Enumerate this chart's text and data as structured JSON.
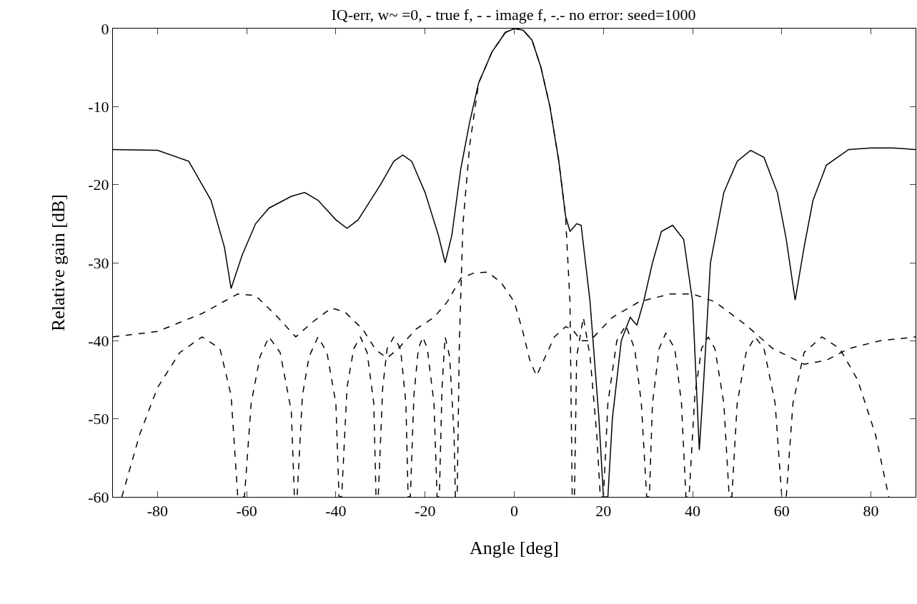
{
  "chart_data": {
    "type": "line",
    "title": "IQ-err, w~ =0, - true f, - - image f, -.- no error: seed=1000",
    "xlabel": "Angle [deg]",
    "ylabel": "Relative gain [dB]",
    "xlim": [
      -90,
      90
    ],
    "ylim": [
      -60,
      0
    ],
    "xticks": [
      -80,
      -60,
      -40,
      -20,
      0,
      20,
      40,
      60,
      80
    ],
    "yticks": [
      -60,
      -50,
      -40,
      -30,
      -20,
      -10,
      0
    ],
    "grid": false,
    "marker": "none",
    "series": [
      {
        "color": "#000000",
        "line_style": "solid",
        "x": [
          -90,
          -80,
          -73,
          -68,
          -65,
          -63.5,
          -61,
          -58,
          -55,
          -50,
          -47,
          -44,
          -40,
          -37.5,
          -35,
          -30,
          -27,
          -25,
          -23,
          -20,
          -17,
          -15.5,
          -14,
          -12,
          -10,
          -8,
          -5,
          -2,
          0,
          2,
          4,
          6,
          8,
          10,
          11.5,
          12.5,
          14,
          15,
          17,
          19,
          20,
          21,
          22,
          24,
          26,
          27.5,
          29,
          31,
          33,
          35.5,
          38,
          40,
          41.5,
          42.5,
          44,
          47,
          50,
          53,
          56,
          59,
          61,
          63,
          65,
          67,
          70,
          75,
          80,
          85,
          90
        ],
        "values": [
          -15.5,
          -15.6,
          -17,
          -22,
          -28,
          -33.3,
          -29,
          -25,
          -23,
          -21.5,
          -21,
          -22,
          -24.5,
          -25.6,
          -24.5,
          -20,
          -17,
          -16.2,
          -17,
          -21,
          -26.5,
          -30,
          -26.5,
          -18,
          -12,
          -7,
          -3,
          -0.5,
          0,
          -0.2,
          -1.5,
          -5,
          -10,
          -17,
          -24,
          -26,
          -25,
          -25.2,
          -35,
          -50,
          -60,
          -60,
          -50,
          -40,
          -37,
          -38,
          -35,
          -30,
          -26,
          -25.2,
          -27,
          -35,
          -54,
          -45,
          -30,
          -21,
          -17,
          -15.6,
          -16.5,
          -21,
          -27,
          -34.8,
          -28,
          -22,
          -17.5,
          -15.5,
          -15.3,
          -15.3,
          -15.5
        ]
      },
      {
        "color": "#000000",
        "line_style": "dashed",
        "x": [
          -90,
          -80,
          -70,
          -62,
          -58,
          -53,
          -49,
          -45,
          -41,
          -38,
          -34,
          -31,
          -28.5,
          -26,
          -22,
          -18,
          -15,
          -12,
          -9,
          -6,
          -3,
          0,
          2,
          3.5,
          5,
          7,
          9,
          11.5,
          13,
          15,
          17,
          22,
          28,
          35,
          40,
          45,
          52,
          58,
          65,
          70,
          75,
          82,
          90
        ],
        "values": [
          -39.5,
          -38.8,
          -36.5,
          -34,
          -34.2,
          -37,
          -39.5,
          -37.5,
          -35.8,
          -36.3,
          -38.5,
          -41.2,
          -42.2,
          -41,
          -38.5,
          -37,
          -35,
          -32,
          -31.3,
          -31.2,
          -32.5,
          -35,
          -39,
          -42.5,
          -44.5,
          -42,
          -39.5,
          -38.2,
          -38.5,
          -40,
          -40,
          -37,
          -35,
          -34,
          -34,
          -35,
          -38,
          -41,
          -43,
          -42.5,
          -41,
          -40,
          -39.5
        ]
      },
      {
        "color": "#000000",
        "line_style": "dashed",
        "x": [
          -88,
          -84,
          -80,
          -75,
          -70,
          -66,
          -63.5,
          -62,
          -60.5,
          -59,
          -57,
          -55,
          -52.5,
          -50,
          -49.3,
          -48.7,
          -47.5,
          -46,
          -44,
          -42,
          -40,
          -39.3,
          -38.7,
          -37.5,
          -36,
          -34.5,
          -33,
          -31.5,
          -31,
          -30.5,
          -29.5,
          -28.5,
          -27,
          -25.5,
          -24.3,
          -23.8,
          -23.3,
          -22.5,
          -21.5,
          -20.5,
          -19.5,
          -18,
          -17.3,
          -16.8,
          -16.2,
          -15.5,
          -14.5,
          -13.5,
          -13.2,
          -12.8,
          -12.3,
          -11.5,
          -10,
          -8,
          -5,
          -2,
          0,
          2,
          4,
          6,
          8,
          10,
          11.5,
          12.5,
          13,
          13.5,
          14,
          15.5,
          17,
          18.5,
          19.3,
          20,
          21,
          23,
          25,
          27,
          28.5,
          29.7,
          30.3,
          31,
          32.5,
          34,
          36,
          37.5,
          38.5,
          39.2,
          40.5,
          42,
          43.5,
          45,
          47,
          48.2,
          48.8,
          50,
          52,
          54,
          56,
          58.5,
          60,
          61,
          62.5,
          65,
          69,
          73,
          77,
          81,
          84
        ],
        "values": [
          -60,
          -52,
          -46,
          -41.5,
          -39.5,
          -41,
          -47,
          -60,
          -60,
          -48,
          -42,
          -39.5,
          -41.5,
          -49,
          -60,
          -60,
          -47,
          -42,
          -39.5,
          -41.5,
          -48,
          -60,
          -60,
          -46,
          -41,
          -39.5,
          -41.5,
          -48,
          -60,
          -60,
          -46,
          -41,
          -39.5,
          -41,
          -48,
          -60,
          -60,
          -47,
          -41,
          -39.5,
          -41,
          -48,
          -60,
          -60,
          -46,
          -39.5,
          -42,
          -52,
          -60,
          -60,
          -40,
          -25,
          -15,
          -7,
          -3,
          -0.5,
          0,
          -0.2,
          -1.5,
          -5,
          -10,
          -17,
          -24,
          -35,
          -60,
          -60,
          -42,
          -37,
          -42,
          -52,
          -60,
          -60,
          -48,
          -40,
          -38,
          -41,
          -48,
          -60,
          -60,
          -48,
          -41,
          -39,
          -41,
          -48,
          -60,
          -60,
          -47,
          -41,
          -39.5,
          -41,
          -48,
          -60,
          -60,
          -48,
          -41.5,
          -39.5,
          -41,
          -48,
          -60,
          -60,
          -48,
          -41.5,
          -39.5,
          -41,
          -45,
          -52,
          -60
        ]
      }
    ]
  }
}
